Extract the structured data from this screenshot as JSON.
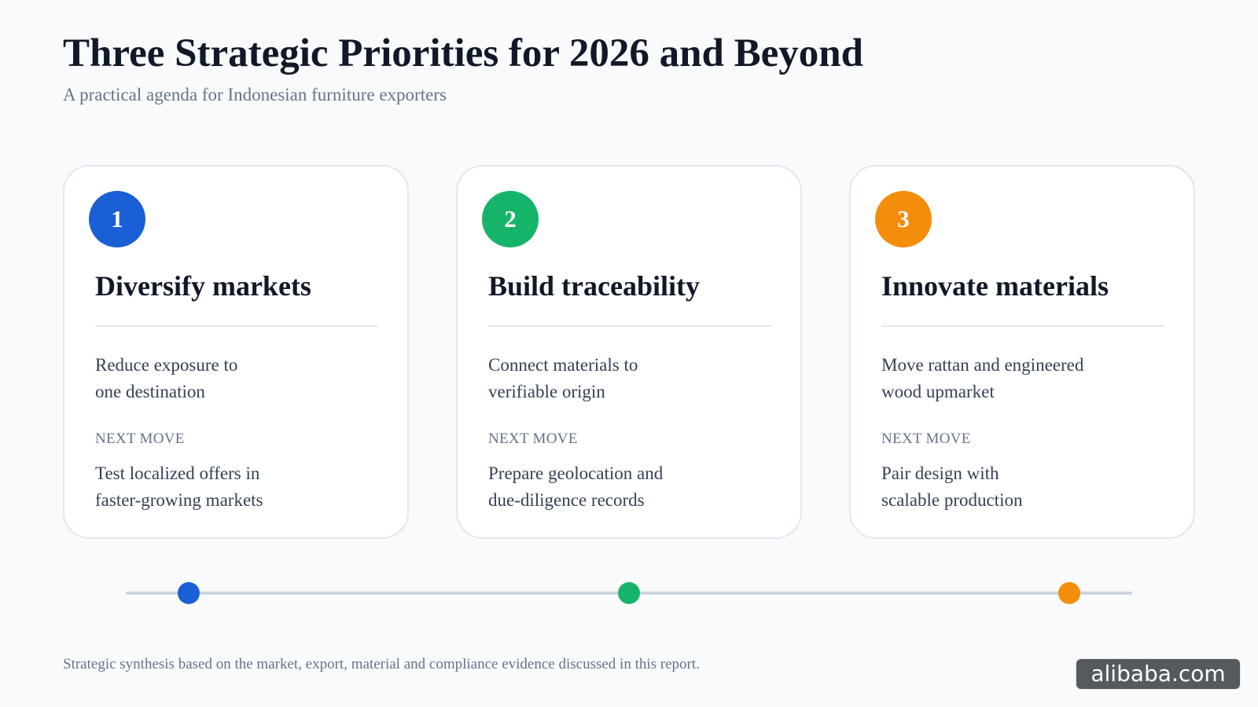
{
  "header": {
    "title": "Three Strategic Priorities for 2026 and Beyond",
    "subtitle": "A practical agenda for Indonesian furniture exporters"
  },
  "cards": [
    {
      "number": "1",
      "title": "Diversify markets",
      "desc_line1": "Reduce exposure to",
      "desc_line2": "one destination",
      "next_label": "NEXT MOVE",
      "next_line1": "Test localized offers in",
      "next_line2": "faster-growing markets",
      "color": "#1a5fd6"
    },
    {
      "number": "2",
      "title": "Build traceability",
      "desc_line1": "Connect materials to",
      "desc_line2": "verifiable origin",
      "next_label": "NEXT MOVE",
      "next_line1": "Prepare geolocation and",
      "next_line2": "due-diligence records",
      "color": "#16b46a"
    },
    {
      "number": "3",
      "title": "Innovate materials",
      "desc_line1": "Move rattan and engineered",
      "desc_line2": "wood upmarket",
      "next_label": "NEXT MOVE",
      "next_line1": "Pair design with",
      "next_line2": "scalable production",
      "color": "#f58d0c"
    }
  ],
  "timeline": {
    "track_color": "#cbd5e1"
  },
  "footer": {
    "note": "Strategic synthesis based on the market, export, material and compliance evidence discussed in this report.",
    "watermark": "alibaba.com"
  }
}
